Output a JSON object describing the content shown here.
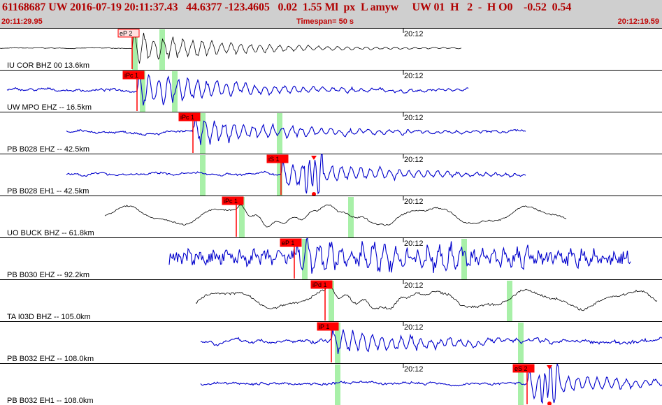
{
  "header": {
    "title": "61168687 UW 2016-07-19 20:11:37.43   44.6377 -123.4605   0.02  1.55 Ml  px  L amyw     UW 01  H   2  -  H O0    -0.52  0.54",
    "start_time": "20:11:29.95",
    "timespan": "Timespan=  50 s",
    "end_time": "20:12:19.59"
  },
  "colors": {
    "header_bg": "#cfcfcf",
    "header_text": "#b00000",
    "trace_blue": "#0000cc",
    "trace_black": "#000000",
    "pick_red": "#ff0000",
    "marker_green": "#a8f0a8"
  },
  "traces": [
    {
      "label": "IU COR BHZ 00 13.6km",
      "tick": "20:12",
      "pick": "eP 2",
      "pick_color": "#ffe0e0",
      "color": "#000000"
    },
    {
      "label": "UW MPO EHZ -- 16.5km",
      "tick": "20:12",
      "pick": "iPc 1",
      "pick_color": "#ff0000",
      "color": "#0000cc"
    },
    {
      "label": "PB B028 EHZ -- 42.5km",
      "tick": "20:12",
      "pick": "iPc 1",
      "pick_color": "#ff0000",
      "color": "#0000cc"
    },
    {
      "label": "PB B028 EH1 -- 42.5km",
      "tick": "20:12",
      "pick": "iS 1",
      "pick_color": "#ff0000",
      "color": "#0000cc"
    },
    {
      "label": "UO BUCK BHZ -- 61.8km",
      "tick": "20:12",
      "pick": "iPc 1",
      "pick_color": "#ff0000",
      "color": "#000000"
    },
    {
      "label": "PB B030 EHZ -- 92.2km",
      "tick": "20:12",
      "pick": "eP 1",
      "pick_color": "#ff0000",
      "color": "#0000cc"
    },
    {
      "label": "TA I03D BHZ -- 105.0km",
      "tick": "20:12",
      "pick": "iPd 1",
      "pick_color": "#ff0000",
      "color": "#000000"
    },
    {
      "label": "PB B032 EHZ -- 108.0km",
      "tick": "20:12",
      "pick": "iP 1",
      "pick_color": "#ff0000",
      "color": "#0000cc"
    },
    {
      "label": "PB B032 EH1 -- 108.0km",
      "tick": "20:12",
      "pick": "eS 2",
      "pick_color": "#ff0000",
      "color": "#0000cc"
    }
  ]
}
